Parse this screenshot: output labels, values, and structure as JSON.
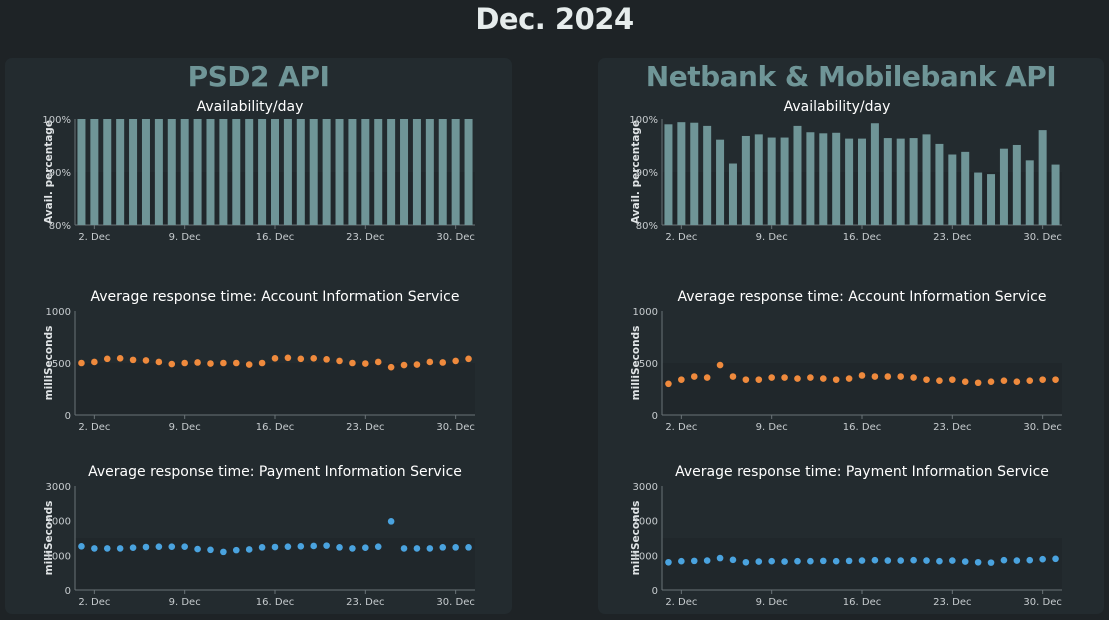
{
  "page_title": "Dec. 2024",
  "colors": {
    "bar": "#6f9597",
    "response_ais": "#ef8a3d",
    "response_pis": "#4aa3df",
    "panel_bg": "#232b2f",
    "page_bg": "#1e2326"
  },
  "panels": [
    {
      "title": "PSD2 API"
    },
    {
      "title": "Netbank & Mobilebank API"
    }
  ],
  "chart_data": [
    {
      "id": "psd2-availability",
      "type": "bar",
      "title": "Availability/day",
      "ylabel": "Avail. percentage",
      "ylim": [
        80,
        100
      ],
      "yticks": [
        "80%",
        "90%",
        "100%"
      ],
      "ytick_values": [
        80,
        90,
        100
      ],
      "x_tick_labels": [
        "2. Dec",
        "9. Dec",
        "16. Dec",
        "23. Dec",
        "30. Dec"
      ],
      "x_tick_days": [
        2,
        9,
        16,
        23,
        30
      ],
      "x": [
        1,
        2,
        3,
        4,
        5,
        6,
        7,
        8,
        9,
        10,
        11,
        12,
        13,
        14,
        15,
        16,
        17,
        18,
        19,
        20,
        21,
        22,
        23,
        24,
        25,
        26,
        27,
        28,
        29,
        30,
        31
      ],
      "values": [
        100,
        100,
        100,
        100,
        100,
        100,
        100,
        100,
        100,
        100,
        100,
        100,
        100,
        100,
        100,
        100,
        100,
        100,
        100,
        100,
        100,
        100,
        100,
        100,
        100,
        100,
        100,
        100,
        100,
        100,
        100
      ]
    },
    {
      "id": "psd2-ais",
      "type": "scatter",
      "title": "Average response time: Account Information Service",
      "ylabel": "milliSeconds",
      "ylim": [
        0,
        1000
      ],
      "yticks": [
        "0",
        "500",
        "1000"
      ],
      "ytick_values": [
        0,
        500,
        1000
      ],
      "x_tick_labels": [
        "2. Dec",
        "9. Dec",
        "16. Dec",
        "23. Dec",
        "30. Dec"
      ],
      "x_tick_days": [
        2,
        9,
        16,
        23,
        30
      ],
      "x": [
        1,
        2,
        3,
        4,
        5,
        6,
        7,
        8,
        9,
        10,
        11,
        12,
        13,
        14,
        15,
        16,
        17,
        18,
        19,
        20,
        21,
        22,
        23,
        24,
        25,
        26,
        27,
        28,
        29,
        30,
        31
      ],
      "values": [
        500,
        510,
        540,
        545,
        530,
        525,
        510,
        490,
        500,
        505,
        495,
        500,
        500,
        485,
        500,
        545,
        550,
        540,
        545,
        535,
        520,
        500,
        495,
        510,
        460,
        480,
        485,
        510,
        505,
        520,
        540
      ]
    },
    {
      "id": "psd2-pis",
      "type": "scatter",
      "title": "Average response time: Payment Information Service",
      "ylabel": "milliSeconds",
      "ylim": [
        0,
        3000
      ],
      "yticks": [
        "0",
        "1000",
        "2000",
        "3000"
      ],
      "ytick_values": [
        0,
        1000,
        2000,
        3000
      ],
      "x_tick_labels": [
        "2. Dec",
        "9. Dec",
        "16. Dec",
        "23. Dec",
        "30. Dec"
      ],
      "x_tick_days": [
        2,
        9,
        16,
        23,
        30
      ],
      "x": [
        1,
        2,
        3,
        4,
        5,
        6,
        7,
        8,
        9,
        10,
        11,
        12,
        13,
        14,
        15,
        16,
        17,
        18,
        19,
        20,
        21,
        22,
        23,
        24,
        25,
        26,
        27,
        28,
        29,
        30,
        31
      ],
      "values": [
        1260,
        1200,
        1200,
        1200,
        1220,
        1240,
        1250,
        1250,
        1250,
        1180,
        1160,
        1100,
        1150,
        1170,
        1230,
        1240,
        1250,
        1260,
        1270,
        1280,
        1230,
        1200,
        1220,
        1250,
        1980,
        1200,
        1200,
        1200,
        1230,
        1230,
        1230
      ]
    },
    {
      "id": "netbank-availability",
      "type": "bar",
      "title": "Availability/day",
      "ylabel": "Avail. percentage",
      "ylim": [
        80,
        100
      ],
      "yticks": [
        "80%",
        "90%",
        "100%"
      ],
      "ytick_values": [
        80,
        90,
        100
      ],
      "x_tick_labels": [
        "2. Dec",
        "9. Dec",
        "16. Dec",
        "23. Dec",
        "30. Dec"
      ],
      "x_tick_days": [
        2,
        9,
        16,
        23,
        30
      ],
      "x": [
        1,
        2,
        3,
        4,
        5,
        6,
        7,
        8,
        9,
        10,
        11,
        12,
        13,
        14,
        15,
        16,
        17,
        18,
        19,
        20,
        21,
        22,
        23,
        24,
        25,
        26,
        27,
        28,
        29,
        30,
        31
      ],
      "values": [
        99.0,
        99.4,
        99.3,
        98.7,
        96.1,
        91.6,
        96.8,
        97.1,
        96.5,
        96.5,
        98.7,
        97.5,
        97.3,
        97.4,
        96.3,
        96.3,
        99.2,
        96.4,
        96.3,
        96.4,
        97.1,
        95.3,
        93.3,
        93.8,
        89.9,
        89.6,
        94.4,
        95.1,
        92.2,
        97.9,
        91.4
      ]
    },
    {
      "id": "netbank-ais",
      "type": "scatter",
      "title": "Average response time: Account Information Service",
      "ylabel": "milliSeconds",
      "ylim": [
        0,
        1000
      ],
      "yticks": [
        "0",
        "500",
        "1000"
      ],
      "ytick_values": [
        0,
        500,
        1000
      ],
      "x_tick_labels": [
        "2. Dec",
        "9. Dec",
        "16. Dec",
        "23. Dec",
        "30. Dec"
      ],
      "x_tick_days": [
        2,
        9,
        16,
        23,
        30
      ],
      "x": [
        1,
        2,
        3,
        4,
        5,
        6,
        7,
        8,
        9,
        10,
        11,
        12,
        13,
        14,
        15,
        16,
        17,
        18,
        19,
        20,
        21,
        22,
        23,
        24,
        25,
        26,
        27,
        28,
        29,
        30,
        31
      ],
      "values": [
        300,
        340,
        370,
        360,
        480,
        370,
        340,
        340,
        360,
        360,
        350,
        360,
        350,
        340,
        350,
        380,
        370,
        370,
        370,
        360,
        340,
        330,
        340,
        320,
        310,
        320,
        330,
        320,
        330,
        340,
        340
      ]
    },
    {
      "id": "netbank-pis",
      "type": "scatter",
      "title": "Average response time: Payment Information Service",
      "ylabel": "milliSeconds",
      "ylim": [
        0,
        3000
      ],
      "yticks": [
        "0",
        "1000",
        "2000",
        "3000"
      ],
      "ytick_values": [
        0,
        1000,
        2000,
        3000
      ],
      "x_tick_labels": [
        "2. Dec",
        "9. Dec",
        "16. Dec",
        "23. Dec",
        "30. Dec"
      ],
      "x_tick_days": [
        2,
        9,
        16,
        23,
        30
      ],
      "x": [
        1,
        2,
        3,
        4,
        5,
        6,
        7,
        8,
        9,
        10,
        11,
        12,
        13,
        14,
        15,
        16,
        17,
        18,
        19,
        20,
        21,
        22,
        23,
        24,
        25,
        26,
        27,
        28,
        29,
        30,
        31
      ],
      "values": [
        800,
        830,
        840,
        850,
        920,
        870,
        800,
        820,
        830,
        820,
        830,
        830,
        840,
        830,
        840,
        850,
        860,
        850,
        850,
        860,
        850,
        830,
        850,
        820,
        800,
        790,
        860,
        850,
        860,
        890,
        900
      ]
    }
  ]
}
